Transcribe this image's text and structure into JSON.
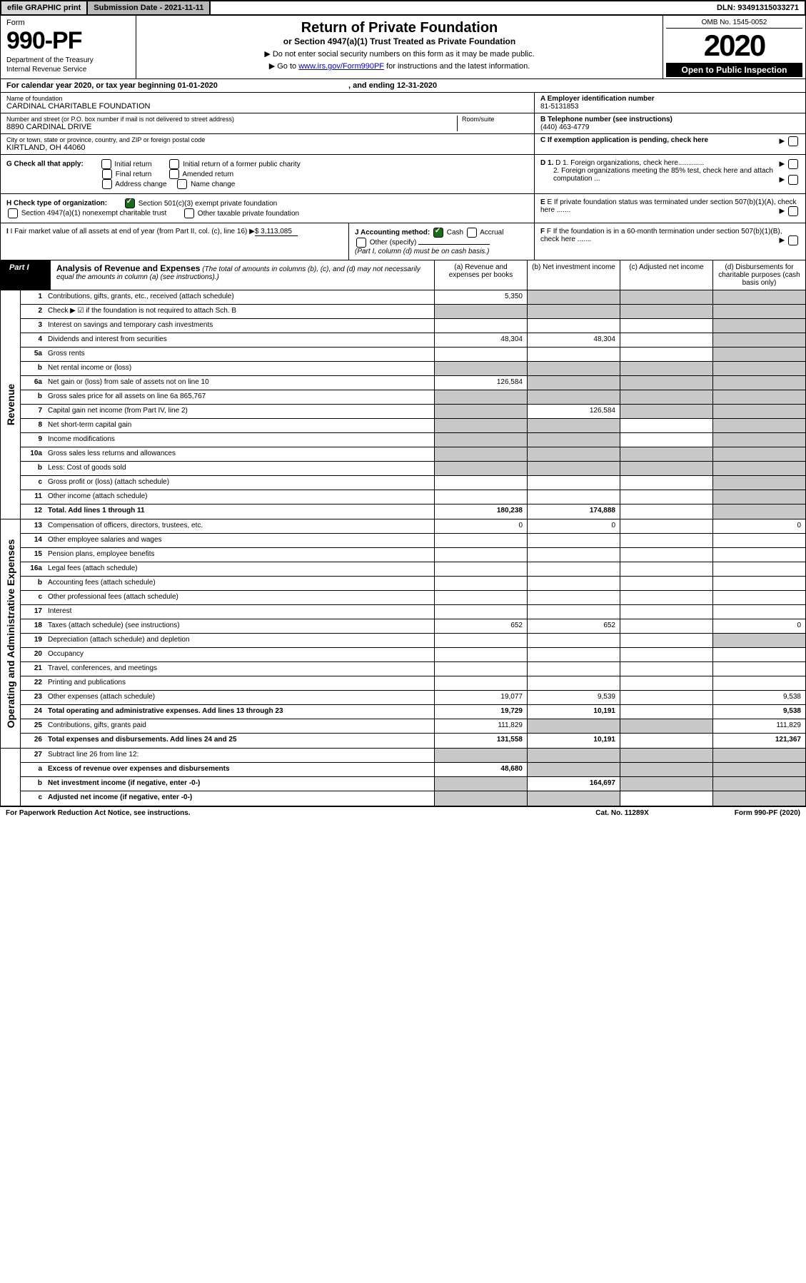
{
  "topbar": {
    "efile": "efile GRAPHIC print",
    "submission": "Submission Date - 2021-11-11",
    "dln": "DLN: 93491315033271"
  },
  "header": {
    "form_label": "Form",
    "form_num": "990-PF",
    "dept": "Department of the Treasury",
    "irs": "Internal Revenue Service",
    "title": "Return of Private Foundation",
    "subtitle": "or Section 4947(a)(1) Trust Treated as Private Foundation",
    "inst1": "▶ Do not enter social security numbers on this form as it may be made public.",
    "inst2": "▶ Go to www.irs.gov/Form990PF for instructions and the latest information.",
    "omb": "OMB No. 1545-0052",
    "year": "2020",
    "open": "Open to Public Inspection"
  },
  "cal": {
    "text": "For calendar year 2020, or tax year beginning 01-01-2020",
    "ending": ", and ending 12-31-2020"
  },
  "info": {
    "name_label": "Name of foundation",
    "name": "CARDINAL CHARITABLE FOUNDATION",
    "addr_label": "Number and street (or P.O. box number if mail is not delivered to street address)",
    "addr": "8890 CARDINAL DRIVE",
    "room_label": "Room/suite",
    "city_label": "City or town, state or province, country, and ZIP or foreign postal code",
    "city": "KIRTLAND, OH  44060",
    "ein_label": "A Employer identification number",
    "ein": "81-5131853",
    "phone_label": "B Telephone number (see instructions)",
    "phone": "(440) 463-4779",
    "c_label": "C If exemption application is pending, check here"
  },
  "g": {
    "label": "G Check all that apply:",
    "opts": [
      "Initial return",
      "Initial return of a former public charity",
      "Final return",
      "Amended return",
      "Address change",
      "Name change"
    ],
    "d1": "D 1. Foreign organizations, check here.............",
    "d2": "2. Foreign organizations meeting the 85% test, check here and attach computation ...",
    "e": "E If private foundation status was terminated under section 507(b)(1)(A), check here .......",
    "f": "F If the foundation is in a 60-month termination under section 507(b)(1)(B), check here ......."
  },
  "h": {
    "label": "H Check type of organization:",
    "opt1": "Section 501(c)(3) exempt private foundation",
    "opt2": "Section 4947(a)(1) nonexempt charitable trust",
    "opt3": "Other taxable private foundation"
  },
  "i": {
    "label": "I Fair market value of all assets at end of year (from Part II, col. (c), line 16)",
    "value": "$  3,113,085"
  },
  "j": {
    "label": "J Accounting method:",
    "cash": "Cash",
    "accrual": "Accrual",
    "other": "Other (specify)",
    "note": "(Part I, column (d) must be on cash basis.)"
  },
  "part1": {
    "tab": "Part I",
    "title": "Analysis of Revenue and Expenses",
    "note": "(The total of amounts in columns (b), (c), and (d) may not necessarily equal the amounts in column (a) (see instructions).)",
    "col_a": "(a) Revenue and expenses per books",
    "col_b": "(b) Net investment income",
    "col_c": "(c) Adjusted net income",
    "col_d": "(d) Disbursements for charitable purposes (cash basis only)"
  },
  "revenue_label": "Revenue",
  "expenses_label": "Operating and Administrative Expenses",
  "rows": {
    "r1": {
      "n": "1",
      "d": "",
      "a": "5,350",
      "b": "",
      "c": ""
    },
    "r2": {
      "n": "2",
      "d": "",
      "a": "",
      "b": "",
      "c": ""
    },
    "r3": {
      "n": "3",
      "d": "",
      "a": "",
      "b": "",
      "c": ""
    },
    "r4": {
      "n": "4",
      "d": "",
      "a": "48,304",
      "b": "48,304",
      "c": ""
    },
    "r5a": {
      "n": "5a",
      "d": "",
      "a": "",
      "b": "",
      "c": ""
    },
    "r5b": {
      "n": "b",
      "d": "",
      "a": "",
      "b": "",
      "c": ""
    },
    "r6a": {
      "n": "6a",
      "d": "",
      "a": "126,584",
      "b": "",
      "c": ""
    },
    "r6b": {
      "n": "b",
      "d": "",
      "a": "",
      "b": "",
      "c": ""
    },
    "r7": {
      "n": "7",
      "d": "",
      "a": "",
      "b": "126,584",
      "c": ""
    },
    "r8": {
      "n": "8",
      "d": "",
      "a": "",
      "b": "",
      "c": ""
    },
    "r9": {
      "n": "9",
      "d": "",
      "a": "",
      "b": "",
      "c": ""
    },
    "r10a": {
      "n": "10a",
      "d": "",
      "a": "",
      "b": "",
      "c": ""
    },
    "r10b": {
      "n": "b",
      "d": "",
      "a": "",
      "b": "",
      "c": ""
    },
    "r10c": {
      "n": "c",
      "d": "",
      "a": "",
      "b": "",
      "c": ""
    },
    "r11": {
      "n": "11",
      "d": "",
      "a": "",
      "b": "",
      "c": ""
    },
    "r12": {
      "n": "12",
      "d": "",
      "a": "180,238",
      "b": "174,888",
      "c": ""
    },
    "r13": {
      "n": "13",
      "d": "0",
      "a": "0",
      "b": "0",
      "c": ""
    },
    "r14": {
      "n": "14",
      "d": "",
      "a": "",
      "b": "",
      "c": ""
    },
    "r15": {
      "n": "15",
      "d": "",
      "a": "",
      "b": "",
      "c": ""
    },
    "r16a": {
      "n": "16a",
      "d": "",
      "a": "",
      "b": "",
      "c": ""
    },
    "r16b": {
      "n": "b",
      "d": "",
      "a": "",
      "b": "",
      "c": ""
    },
    "r16c": {
      "n": "c",
      "d": "",
      "a": "",
      "b": "",
      "c": ""
    },
    "r17": {
      "n": "17",
      "d": "",
      "a": "",
      "b": "",
      "c": ""
    },
    "r18": {
      "n": "18",
      "d": "0",
      "a": "652",
      "b": "652",
      "c": ""
    },
    "r19": {
      "n": "19",
      "d": "",
      "a": "",
      "b": "",
      "c": ""
    },
    "r20": {
      "n": "20",
      "d": "",
      "a": "",
      "b": "",
      "c": ""
    },
    "r21": {
      "n": "21",
      "d": "",
      "a": "",
      "b": "",
      "c": ""
    },
    "r22": {
      "n": "22",
      "d": "",
      "a": "",
      "b": "",
      "c": ""
    },
    "r23": {
      "n": "23",
      "d": "9,538",
      "a": "19,077",
      "b": "9,539",
      "c": ""
    },
    "r24": {
      "n": "24",
      "d": "9,538",
      "a": "19,729",
      "b": "10,191",
      "c": ""
    },
    "r25": {
      "n": "25",
      "d": "111,829",
      "a": "111,829",
      "b": "",
      "c": ""
    },
    "r26": {
      "n": "26",
      "d": "121,367",
      "a": "131,558",
      "b": "10,191",
      "c": ""
    },
    "r27": {
      "n": "27",
      "d": "",
      "a": "",
      "b": "",
      "c": ""
    },
    "r27a": {
      "n": "a",
      "d": "",
      "a": "48,680",
      "b": "",
      "c": ""
    },
    "r27b": {
      "n": "b",
      "d": "",
      "a": "",
      "b": "164,697",
      "c": ""
    },
    "r27c": {
      "n": "c",
      "d": "",
      "a": "",
      "b": "",
      "c": ""
    }
  },
  "footer": {
    "pra": "For Paperwork Reduction Act Notice, see instructions.",
    "cat": "Cat. No. 11289X",
    "form": "Form 990-PF (2020)"
  },
  "colors": {
    "black": "#000000",
    "white": "#ffffff",
    "grey_cell": "#c8c8c8",
    "topbar_grey1": "#d8d8d8",
    "topbar_grey2": "#b8b8b8",
    "link": "#0000cc",
    "check_green": "#1a6b1a"
  }
}
